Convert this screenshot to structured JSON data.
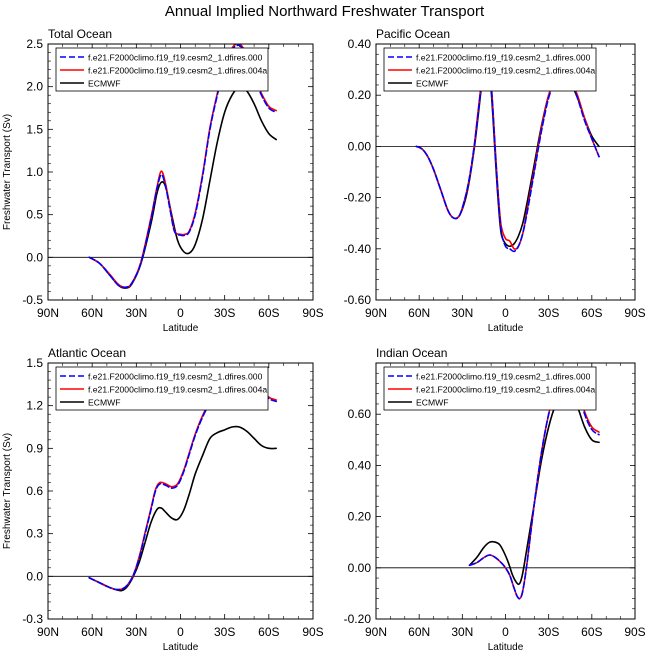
{
  "figure": {
    "title": "Annual Implied Northward Freshwater Transport"
  },
  "legend_labels": [
    "f.e21.F2000climo.f19_f19.cesm2_1.dfires.000",
    "f.e21.F2000climo.f19_f19.cesm2_1.dfires.004a",
    "ECMWF"
  ],
  "series_colors": [
    "#0000ff",
    "#ff0000",
    "#000000"
  ],
  "chart_data": [
    {
      "type": "line",
      "title": "Total Ocean",
      "xlabel": "Latitude",
      "ylabel": "Freshwater Transport (Sv)",
      "xlim": [
        -90,
        90
      ],
      "x_ticks": [
        -90,
        -60,
        -30,
        0,
        30,
        60,
        90
      ],
      "x_tick_labels": [
        "90N",
        "60N",
        "30N",
        "0",
        "30S",
        "60S",
        "90S"
      ],
      "ylim": [
        -0.5,
        2.5
      ],
      "y_ticks": [
        -0.5,
        0.0,
        0.5,
        1.0,
        1.5,
        2.0,
        2.5
      ],
      "y_tick_labels": [
        "-0.5",
        "0.0",
        "0.5",
        "1.0",
        "1.5",
        "2.0",
        "2.5"
      ],
      "series": [
        {
          "name": "f.e21.F2000climo.f19_f19.cesm2_1.dfires.000",
          "x": [
            -62,
            -55,
            -48,
            -42,
            -37,
            -33,
            -27,
            -20,
            -16,
            -13,
            -10,
            -7,
            -4,
            0,
            3,
            6,
            10,
            15,
            20,
            25,
            30,
            35,
            38,
            41,
            45,
            50,
            55,
            60,
            65
          ],
          "y": [
            0.0,
            -0.07,
            -0.21,
            -0.33,
            -0.35,
            -0.3,
            -0.07,
            0.45,
            0.8,
            0.97,
            0.82,
            0.55,
            0.3,
            0.26,
            0.26,
            0.3,
            0.5,
            0.95,
            1.5,
            1.9,
            2.25,
            2.43,
            2.48,
            2.47,
            2.35,
            2.1,
            1.9,
            1.75,
            1.7
          ]
        },
        {
          "name": "f.e21.F2000climo.f19_f19.cesm2_1.dfires.004a",
          "x": [
            -62,
            -55,
            -48,
            -42,
            -37,
            -33,
            -27,
            -20,
            -16,
            -13,
            -10,
            -7,
            -4,
            0,
            3,
            6,
            10,
            15,
            20,
            25,
            30,
            35,
            38,
            41,
            45,
            50,
            55,
            60,
            65
          ],
          "y": [
            0.0,
            -0.07,
            -0.2,
            -0.32,
            -0.35,
            -0.3,
            -0.06,
            0.47,
            0.82,
            1.01,
            0.85,
            0.57,
            0.31,
            0.27,
            0.27,
            0.31,
            0.52,
            0.97,
            1.52,
            1.92,
            2.27,
            2.45,
            2.5,
            2.49,
            2.37,
            2.12,
            1.92,
            1.77,
            1.72
          ]
        },
        {
          "name": "ECMWF",
          "x": [
            -62,
            -55,
            -48,
            -42,
            -37,
            -33,
            -27,
            -20,
            -16,
            -13,
            -10,
            -6,
            -2,
            2,
            6,
            10,
            15,
            20,
            25,
            30,
            35,
            40,
            45,
            50,
            55,
            60,
            65
          ],
          "y": [
            0.0,
            -0.07,
            -0.21,
            -0.33,
            -0.36,
            -0.31,
            -0.08,
            0.4,
            0.75,
            0.88,
            0.82,
            0.5,
            0.2,
            0.07,
            0.05,
            0.15,
            0.45,
            0.9,
            1.35,
            1.7,
            1.9,
            2.0,
            1.95,
            1.8,
            1.6,
            1.45,
            1.38
          ]
        }
      ]
    },
    {
      "type": "line",
      "title": "Pacific Ocean",
      "xlabel": "Latitude",
      "ylabel": "",
      "xlim": [
        -90,
        90
      ],
      "x_ticks": [
        -90,
        -60,
        -30,
        0,
        30,
        60,
        90
      ],
      "x_tick_labels": [
        "90N",
        "60N",
        "30N",
        "0",
        "30S",
        "60S",
        "90S"
      ],
      "ylim": [
        -0.6,
        0.4
      ],
      "y_ticks": [
        -0.6,
        -0.4,
        -0.2,
        0.0,
        0.2,
        0.4
      ],
      "y_tick_labels": [
        "-0.60",
        "-0.40",
        "-0.20",
        "0.00",
        "0.20",
        "0.40"
      ],
      "series": [
        {
          "name": "f.e21.F2000climo.f19_f19.cesm2_1.dfires.000",
          "x": [
            -62,
            -58,
            -54,
            -50,
            -45,
            -40,
            -36,
            -32,
            -28,
            -25,
            -22,
            -20,
            -17,
            -15,
            -13,
            -11,
            -9,
            -7,
            -5,
            -3,
            0,
            3,
            6,
            9,
            12,
            15,
            20,
            25,
            30,
            35,
            40,
            45,
            50,
            55,
            60,
            65
          ],
          "y": [
            0.0,
            -0.01,
            -0.04,
            -0.09,
            -0.17,
            -0.25,
            -0.28,
            -0.27,
            -0.2,
            -0.12,
            -0.01,
            0.08,
            0.23,
            0.33,
            0.37,
            0.31,
            0.16,
            -0.03,
            -0.2,
            -0.33,
            -0.39,
            -0.4,
            -0.41,
            -0.39,
            -0.34,
            -0.26,
            -0.1,
            0.06,
            0.19,
            0.26,
            0.28,
            0.26,
            0.19,
            0.1,
            0.03,
            -0.04
          ]
        },
        {
          "name": "f.e21.F2000climo.f19_f19.cesm2_1.dfires.004a",
          "x": [
            -62,
            -58,
            -54,
            -50,
            -45,
            -40,
            -36,
            -32,
            -28,
            -25,
            -22,
            -20,
            -17,
            -15,
            -13,
            -11,
            -9,
            -7,
            -5,
            -3,
            0,
            3,
            6,
            9,
            12,
            15,
            20,
            25,
            30,
            35,
            40,
            45,
            50,
            55,
            60,
            65
          ],
          "y": [
            0.0,
            -0.01,
            -0.04,
            -0.09,
            -0.17,
            -0.25,
            -0.28,
            -0.27,
            -0.2,
            -0.12,
            -0.01,
            0.09,
            0.24,
            0.34,
            0.38,
            0.32,
            0.17,
            -0.02,
            -0.19,
            -0.31,
            -0.36,
            -0.37,
            -0.4,
            -0.39,
            -0.34,
            -0.25,
            -0.09,
            0.07,
            0.2,
            0.27,
            0.28,
            0.26,
            0.2,
            0.11,
            0.03,
            -0.04
          ]
        },
        {
          "name": "ECMWF",
          "x": [
            -62,
            -58,
            -54,
            -50,
            -45,
            -40,
            -36,
            -32,
            -28,
            -25,
            -22,
            -20,
            -17,
            -15,
            -13,
            -11,
            -9,
            -7,
            -5,
            -3,
            0,
            3,
            6,
            9,
            12,
            15,
            20,
            25,
            30,
            35,
            40,
            45,
            50,
            55,
            60,
            65
          ],
          "y": [
            0.0,
            -0.01,
            -0.04,
            -0.09,
            -0.17,
            -0.25,
            -0.28,
            -0.27,
            -0.21,
            -0.13,
            -0.02,
            0.07,
            0.22,
            0.32,
            0.35,
            0.29,
            0.14,
            -0.05,
            -0.22,
            -0.34,
            -0.38,
            -0.39,
            -0.38,
            -0.35,
            -0.3,
            -0.22,
            -0.07,
            0.08,
            0.2,
            0.26,
            0.27,
            0.25,
            0.19,
            0.11,
            0.04,
            0.0
          ]
        }
      ]
    },
    {
      "type": "line",
      "title": "Atlantic Ocean",
      "xlabel": "Latitude",
      "ylabel": "Freshwater Transport (Sv)",
      "xlim": [
        -90,
        90
      ],
      "x_ticks": [
        -90,
        -60,
        -30,
        0,
        30,
        60,
        90
      ],
      "x_tick_labels": [
        "90N",
        "60N",
        "30N",
        "0",
        "30S",
        "60S",
        "90S"
      ],
      "ylim": [
        -0.3,
        1.5
      ],
      "y_ticks": [
        -0.3,
        0.0,
        0.3,
        0.6,
        0.9,
        1.2,
        1.5
      ],
      "y_tick_labels": [
        "-0.3",
        "0.0",
        "0.3",
        "0.6",
        "0.9",
        "1.2",
        "1.5"
      ],
      "series": [
        {
          "name": "f.e21.F2000climo.f19_f19.cesm2_1.dfires.000",
          "x": [
            -62,
            -56,
            -50,
            -45,
            -40,
            -36,
            -32,
            -28,
            -24,
            -20,
            -17,
            -14,
            -10,
            -6,
            -2,
            2,
            6,
            10,
            15,
            20,
            25,
            30,
            35,
            40,
            45,
            50,
            55,
            60,
            65
          ],
          "y": [
            -0.01,
            -0.04,
            -0.07,
            -0.09,
            -0.09,
            -0.06,
            0.01,
            0.13,
            0.3,
            0.47,
            0.6,
            0.65,
            0.64,
            0.62,
            0.64,
            0.73,
            0.86,
            0.99,
            1.12,
            1.22,
            1.3,
            1.35,
            1.4,
            1.42,
            1.41,
            1.37,
            1.31,
            1.25,
            1.23
          ]
        },
        {
          "name": "f.e21.F2000climo.f19_f19.cesm2_1.dfires.004a",
          "x": [
            -62,
            -56,
            -50,
            -45,
            -40,
            -36,
            -32,
            -28,
            -24,
            -20,
            -17,
            -14,
            -10,
            -6,
            -2,
            2,
            6,
            10,
            15,
            20,
            25,
            30,
            35,
            40,
            45,
            50,
            55,
            60,
            65
          ],
          "y": [
            -0.01,
            -0.04,
            -0.07,
            -0.09,
            -0.09,
            -0.06,
            0.01,
            0.14,
            0.31,
            0.48,
            0.61,
            0.66,
            0.65,
            0.63,
            0.65,
            0.74,
            0.87,
            1.0,
            1.13,
            1.23,
            1.31,
            1.36,
            1.41,
            1.43,
            1.42,
            1.38,
            1.32,
            1.26,
            1.24
          ]
        },
        {
          "name": "ECMWF",
          "x": [
            -62,
            -56,
            -50,
            -45,
            -40,
            -36,
            -32,
            -28,
            -24,
            -20,
            -16,
            -13,
            -10,
            -6,
            -2,
            2,
            6,
            10,
            15,
            20,
            25,
            30,
            35,
            40,
            45,
            50,
            55,
            60,
            65
          ],
          "y": [
            -0.01,
            -0.04,
            -0.07,
            -0.09,
            -0.1,
            -0.07,
            0.0,
            0.1,
            0.24,
            0.38,
            0.47,
            0.48,
            0.45,
            0.41,
            0.4,
            0.46,
            0.58,
            0.72,
            0.85,
            0.97,
            1.01,
            1.03,
            1.05,
            1.05,
            1.02,
            0.97,
            0.92,
            0.9,
            0.9
          ]
        }
      ]
    },
    {
      "type": "line",
      "title": "Indian Ocean",
      "xlabel": "Latitude",
      "ylabel": "",
      "xlim": [
        -90,
        90
      ],
      "x_ticks": [
        -90,
        -60,
        -30,
        0,
        30,
        60,
        90
      ],
      "x_tick_labels": [
        "90N",
        "60N",
        "30N",
        "0",
        "30S",
        "60S",
        "90S"
      ],
      "ylim": [
        -0.2,
        0.8
      ],
      "y_ticks": [
        -0.2,
        0.0,
        0.2,
        0.4,
        0.6
      ],
      "y_tick_labels": [
        "-0.20",
        "0.00",
        "0.20",
        "0.40",
        "0.60"
      ],
      "series": [
        {
          "name": "f.e21.F2000climo.f19_f19.cesm2_1.dfires.000",
          "x": [
            -25,
            -20,
            -15,
            -11,
            -7,
            -3,
            0,
            3,
            6,
            8,
            10,
            12,
            15,
            20,
            25,
            30,
            35,
            40,
            43,
            45,
            50,
            55,
            60,
            65
          ],
          "y": [
            0.01,
            0.02,
            0.04,
            0.05,
            0.04,
            0.02,
            0.0,
            -0.03,
            -0.08,
            -0.11,
            -0.12,
            -0.09,
            0.02,
            0.25,
            0.45,
            0.6,
            0.7,
            0.76,
            0.77,
            0.76,
            0.7,
            0.6,
            0.54,
            0.52
          ]
        },
        {
          "name": "f.e21.F2000climo.f19_f19.cesm2_1.dfires.004a",
          "x": [
            -25,
            -20,
            -15,
            -11,
            -7,
            -3,
            0,
            3,
            6,
            8,
            10,
            12,
            15,
            20,
            25,
            30,
            35,
            40,
            43,
            45,
            50,
            55,
            60,
            65
          ],
          "y": [
            0.01,
            0.02,
            0.04,
            0.05,
            0.04,
            0.02,
            0.0,
            -0.03,
            -0.08,
            -0.11,
            -0.12,
            -0.09,
            0.02,
            0.25,
            0.45,
            0.6,
            0.7,
            0.76,
            0.78,
            0.77,
            0.71,
            0.61,
            0.55,
            0.53
          ]
        },
        {
          "name": "ECMWF",
          "x": [
            -25,
            -20,
            -15,
            -11,
            -7,
            -4,
            -1,
            2,
            5,
            8,
            10,
            12,
            15,
            20,
            25,
            30,
            35,
            40,
            43,
            45,
            50,
            55,
            60,
            65
          ],
          "y": [
            0.01,
            0.04,
            0.08,
            0.1,
            0.1,
            0.09,
            0.06,
            0.02,
            -0.03,
            -0.06,
            -0.06,
            -0.02,
            0.08,
            0.25,
            0.42,
            0.55,
            0.64,
            0.69,
            0.7,
            0.69,
            0.63,
            0.55,
            0.5,
            0.49
          ]
        }
      ]
    }
  ]
}
